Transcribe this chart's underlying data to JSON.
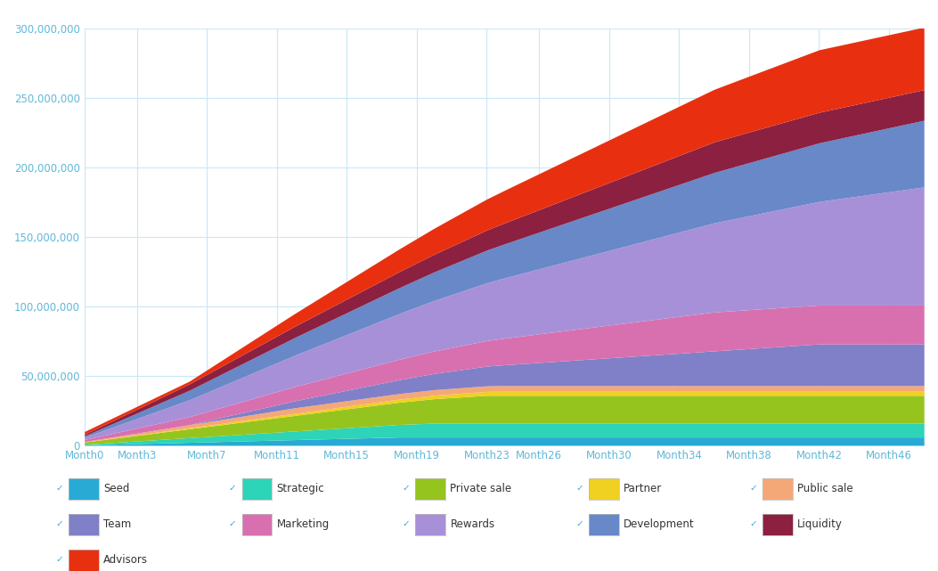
{
  "background_color": "#ffffff",
  "grid_color": "#c8e8f8",
  "text_color": "#60b8d8",
  "ylim": [
    0,
    300000000
  ],
  "yticks": [
    0,
    50000000,
    100000000,
    150000000,
    200000000,
    250000000,
    300000000
  ],
  "ytick_labels": [
    "0",
    "50,000,000",
    "100,000,000",
    "150,000,000",
    "200,000,000",
    "250,000,000",
    "300,000,000"
  ],
  "xtick_positions": [
    0,
    3,
    7,
    11,
    15,
    19,
    23,
    26,
    30,
    34,
    38,
    42,
    46
  ],
  "xtick_labels": [
    "Month0",
    "Month3",
    "Month7",
    "Month11",
    "Month15",
    "Month19",
    "Month23",
    "Month26",
    "Month30",
    "Month34",
    "Month38",
    "Month42",
    "Month46"
  ],
  "n_months": 49,
  "series_order": [
    "Seed",
    "Strategic",
    "Private sale",
    "Partner",
    "Public sale",
    "Team",
    "Marketing",
    "Rewards",
    "Development",
    "Liquidity",
    "Advisors"
  ],
  "colors": {
    "Seed": "#29aad4",
    "Strategic": "#2dd4b8",
    "Private sale": "#96c41e",
    "Partner": "#f0d020",
    "Public sale": "#f4a878",
    "Team": "#8080c8",
    "Marketing": "#d870b0",
    "Rewards": "#a890d8",
    "Development": "#6888c8",
    "Liquidity": "#8c2040",
    "Advisors": "#e83010"
  },
  "totals": {
    "Seed": 6000000,
    "Strategic": 10000000,
    "Private sale": 20000000,
    "Partner": 3000000,
    "Public sale": 4000000,
    "Team": 30000000,
    "Marketing": 28000000,
    "Rewards": 85000000,
    "Development": 48000000,
    "Liquidity": 22000000,
    "Advisors": 45000000
  },
  "cliff_months": {
    "Seed": 1,
    "Strategic": 1,
    "Private sale": 1,
    "Partner": 1,
    "Public sale": 1,
    "Team": 3,
    "Marketing": 1,
    "Rewards": 1,
    "Development": 1,
    "Liquidity": 1,
    "Advisors": 3
  },
  "vesting_months": {
    "Seed": 18,
    "Strategic": 18,
    "Private sale": 18,
    "Partner": 24,
    "Public sale": 12,
    "Team": 36,
    "Marketing": 36,
    "Rewards": 48,
    "Development": 48,
    "Liquidity": 36,
    "Advisors": 36
  },
  "tge_pct": {
    "Seed": 0.05,
    "Strategic": 0.05,
    "Private sale": 0.08,
    "Partner": 0.0,
    "Public sale": 0.1,
    "Team": 0.0,
    "Marketing": 0.05,
    "Rewards": 0.02,
    "Development": 0.02,
    "Liquidity": 0.05,
    "Advisors": 0.0
  }
}
